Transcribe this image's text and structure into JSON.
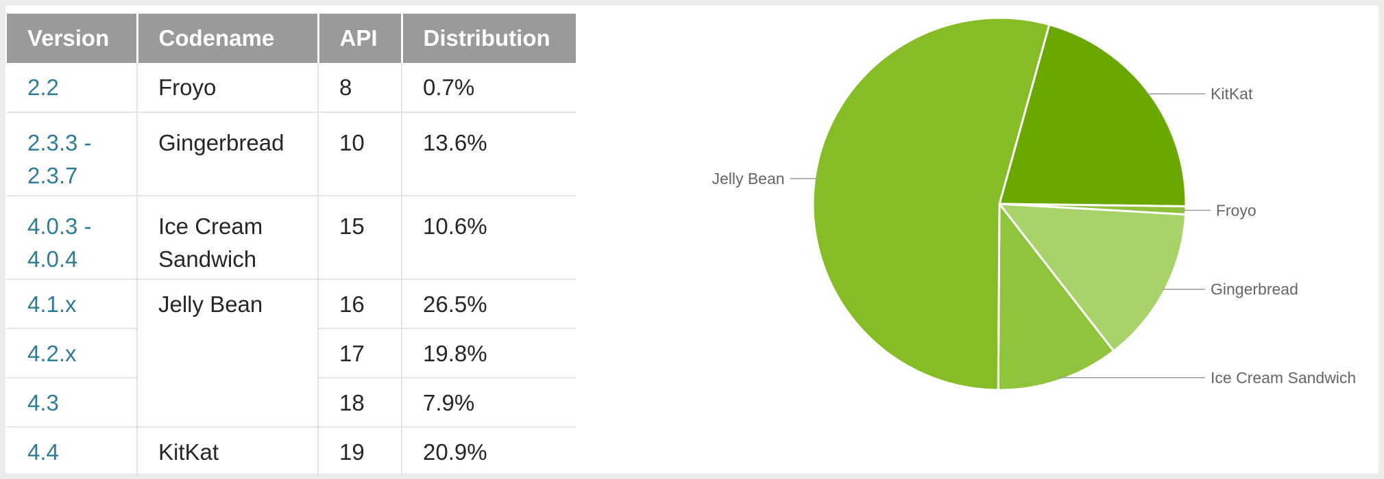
{
  "table": {
    "headers": [
      "Version",
      "Codename",
      "API",
      "Distribution"
    ],
    "rows": [
      {
        "version": [
          "2.2"
        ],
        "codename": [
          "Froyo"
        ],
        "api": "8",
        "distribution": "0.7%"
      },
      {
        "version": [
          "2.3.3 -",
          "2.3.7"
        ],
        "codename": [
          "Gingerbread"
        ],
        "api": "10",
        "distribution": "13.6%"
      },
      {
        "version": [
          "4.0.3 -",
          "4.0.4"
        ],
        "codename": [
          "Ice Cream",
          "Sandwich"
        ],
        "api": "15",
        "distribution": "10.6%"
      },
      {
        "version": [
          "4.1.x"
        ],
        "codename": [
          "Jelly Bean"
        ],
        "api": "16",
        "distribution": "26.5%"
      },
      {
        "version": [
          "4.2.x"
        ],
        "codename": [],
        "api": "17",
        "distribution": "19.8%"
      },
      {
        "version": [
          "4.3"
        ],
        "codename": [],
        "api": "18",
        "distribution": "7.9%"
      },
      {
        "version": [
          "4.4"
        ],
        "codename": [
          "KitKat"
        ],
        "api": "19",
        "distribution": "20.9%"
      }
    ]
  },
  "chart_data": {
    "type": "pie",
    "title": "",
    "start_angle_deg": 15.5,
    "direction": "clockwise",
    "slices": [
      {
        "label": "KitKat",
        "value": 20.9,
        "color": "#6aa800"
      },
      {
        "label": "Froyo",
        "value": 0.7,
        "color": "#8fc13a"
      },
      {
        "label": "Gingerbread",
        "value": 13.6,
        "color": "#a8d36b"
      },
      {
        "label": "Ice Cream Sandwich",
        "value": 10.6,
        "color": "#91c43d"
      },
      {
        "label": "Jelly Bean",
        "value": 54.2,
        "color": "#86bc25"
      }
    ],
    "legend": "none",
    "labels": "outside with leader lines"
  }
}
